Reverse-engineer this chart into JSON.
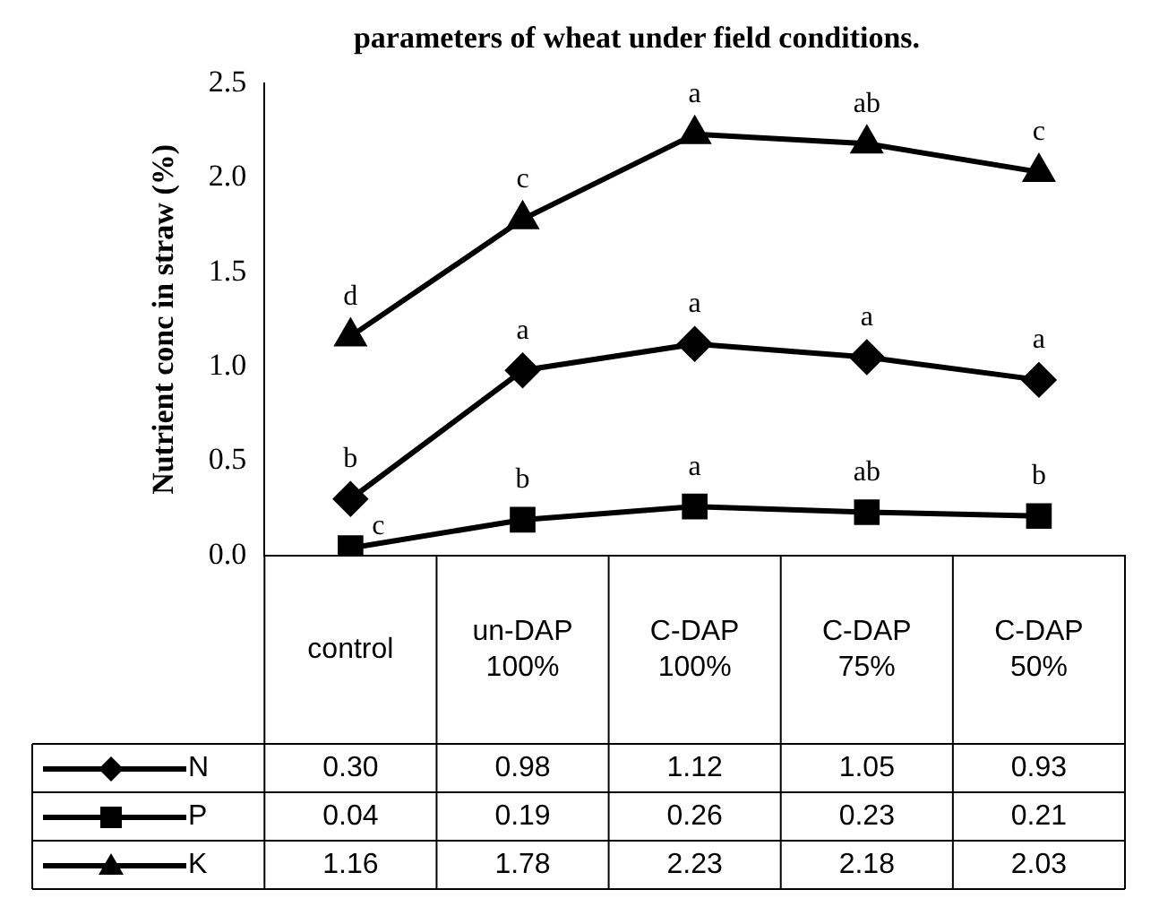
{
  "chart_data": {
    "type": "line",
    "title": "parameters of wheat under field conditions.",
    "ylabel": "Nutrient conc in straw (%)",
    "categories": [
      "control",
      "un-DAP 100%",
      "C-DAP 100%",
      "C-DAP 75%",
      "C-DAP 50%"
    ],
    "ylim": [
      0,
      2.5
    ],
    "yticks": [
      {
        "value": 0,
        "label": "0.0"
      },
      {
        "value": 0.5,
        "label": "0.5"
      },
      {
        "value": 1,
        "label": "1.0"
      },
      {
        "value": 1.5,
        "label": "1.5"
      },
      {
        "value": 2,
        "label": "2.0"
      },
      {
        "value": 2.5,
        "label": "2.5"
      }
    ],
    "grid": false,
    "legend": "bottom",
    "line_style": "solid",
    "series": [
      {
        "name": "N",
        "color": "#000000",
        "marker": "diamond",
        "values": [
          0.3,
          0.98,
          1.12,
          1.05,
          0.93
        ],
        "value_labels": [
          "0.30",
          "0.98",
          "1.12",
          "1.05",
          "0.93"
        ]
      },
      {
        "name": "P",
        "color": "#000000",
        "marker": "square",
        "values": [
          0.04,
          0.19,
          0.26,
          0.23,
          0.21
        ],
        "value_labels": [
          "0.04",
          "0.19",
          "0.26",
          "0.23",
          "0.21"
        ]
      },
      {
        "name": "K",
        "color": "#000000",
        "marker": "triangle",
        "values": [
          1.16,
          1.78,
          2.23,
          2.18,
          2.03
        ],
        "value_labels": [
          "1.16",
          "1.78",
          "2.23",
          "2.18",
          "2.03"
        ]
      }
    ],
    "annotations": [
      {
        "text": "b",
        "x": "control",
        "y": 0.3
      },
      {
        "text": "a",
        "x": "un-DAP 100%",
        "y": 0.98
      },
      {
        "text": "a",
        "x": "C-DAP 100%",
        "y": 1.12
      },
      {
        "text": "a",
        "x": "C-DAP 75%",
        "y": 1.05
      },
      {
        "text": "a",
        "x": "C-DAP 50%",
        "y": 0.93
      },
      {
        "text": "c",
        "x": "control",
        "y": 0.04
      },
      {
        "text": "b",
        "x": "un-DAP 100%",
        "y": 0.19
      },
      {
        "text": "a",
        "x": "C-DAP 100%",
        "y": 0.26
      },
      {
        "text": "ab",
        "x": "C-DAP 75%",
        "y": 0.23
      },
      {
        "text": "b",
        "x": "C-DAP 50%",
        "y": 0.21
      },
      {
        "text": "d",
        "x": "control",
        "y": 1.16
      },
      {
        "text": "c",
        "x": "un-DAP 100%",
        "y": 1.78
      },
      {
        "text": "a",
        "x": "C-DAP 100%",
        "y": 2.23
      },
      {
        "text": "ab",
        "x": "C-DAP 75%",
        "y": 2.18
      },
      {
        "text": "c",
        "x": "C-DAP 50%",
        "y": 2.03
      }
    ]
  }
}
